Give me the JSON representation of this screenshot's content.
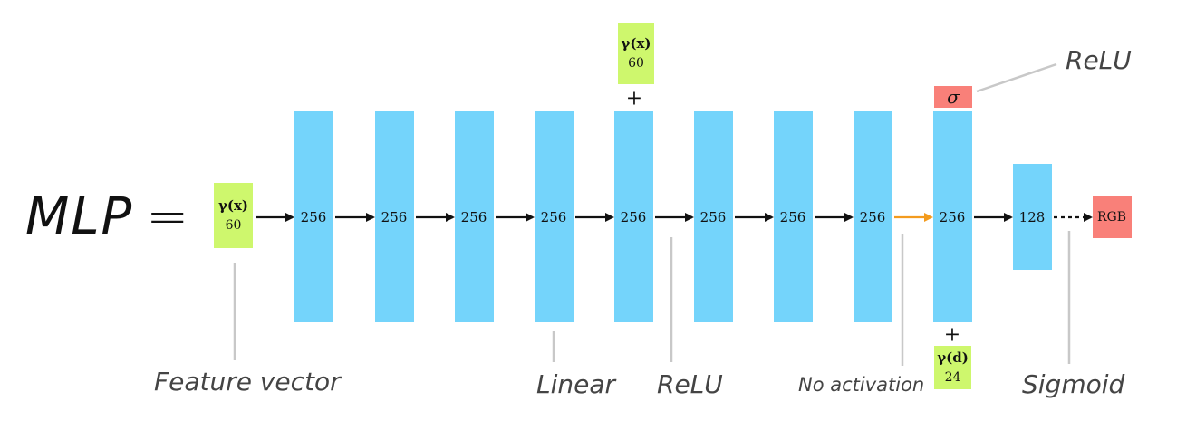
{
  "title": "MLP",
  "equals": "=",
  "input": {
    "label": "γ(x)",
    "size": "60"
  },
  "layers": [
    "256",
    "256",
    "256",
    "256",
    "256",
    "256",
    "256",
    "256",
    "256",
    "128"
  ],
  "skip_input": {
    "label": "γ(x)",
    "size": "60",
    "plus": "+"
  },
  "sigma_label": "σ",
  "view_input": {
    "label": "γ(d)",
    "size": "24",
    "plus": "+"
  },
  "output": "RGB",
  "captions": {
    "feature_vector": "Feature vector",
    "linear": "Linear",
    "relu_bottom": "ReLU",
    "no_activation": "No activation",
    "sigmoid": "Sigmoid",
    "relu_top": "ReLU"
  },
  "colors": {
    "layer": "#74d4fb",
    "input": "#cef76d",
    "output": "#f98079",
    "arrow": "#111111",
    "no_activation_arrow": "#f39b1e",
    "pointer": "#c8c8c8"
  }
}
